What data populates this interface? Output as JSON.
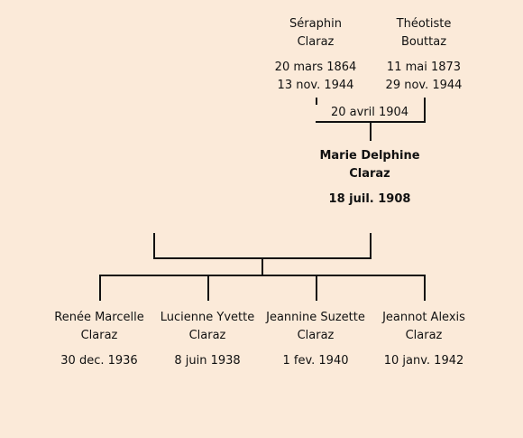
{
  "parents": [
    {
      "first_name": "Séraphin",
      "last_name": "Claraz",
      "birth": "20 mars 1864",
      "death": "13 nov. 1944"
    },
    {
      "first_name": "Théotiste",
      "last_name": "Bouttaz",
      "birth": "11 mai 1873",
      "death": "29 nov. 1944"
    }
  ],
  "marriage_date": "20 avril 1904",
  "focus": {
    "first_name": "Marie Delphine",
    "last_name": "Claraz",
    "birth": "18 juil. 1908"
  },
  "children": [
    {
      "first_name": "Renée Marcelle",
      "last_name": "Claraz",
      "birth": "30 dec. 1936"
    },
    {
      "first_name": "Lucienne Yvette",
      "last_name": "Claraz",
      "birth": "8 juin 1938"
    },
    {
      "first_name": "Jeannine Suzette",
      "last_name": "Claraz",
      "birth": "1 fev. 1940"
    },
    {
      "first_name": "Jeannot Alexis",
      "last_name": "Claraz",
      "birth": "10 janv. 1942"
    }
  ]
}
